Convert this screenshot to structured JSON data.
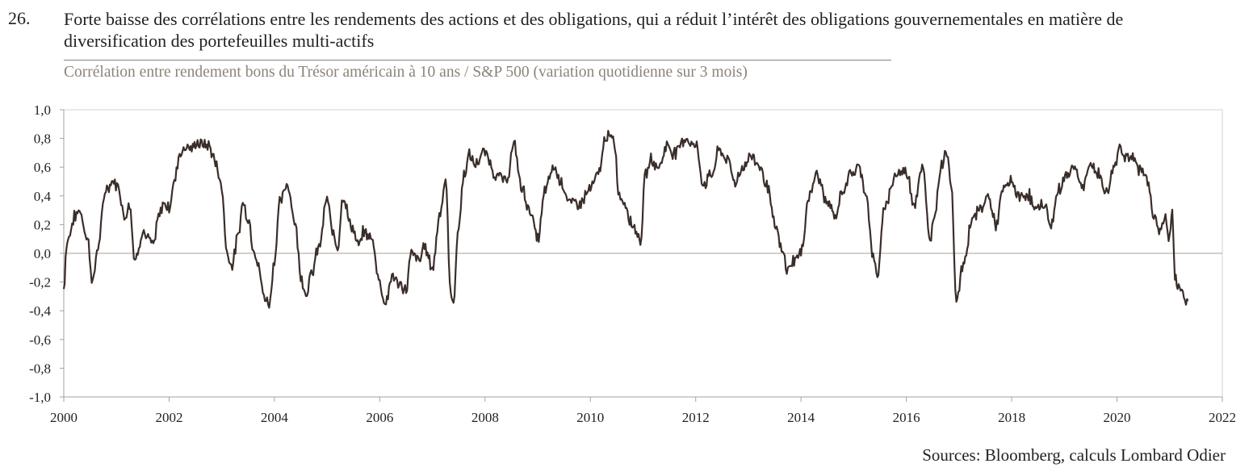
{
  "header": {
    "figure_number": "26.",
    "title": "Forte baisse des corrélations entre les rendements des actions et des obligations, qui a réduit l’intérêt des obligations gouvernementales en matière de diversification des portefeuilles multi-actifs",
    "subtitle": "Corrélation entre rendement bons du Trésor américain à 10 ans / S&P 500 (variation quotidienne sur 3 mois)"
  },
  "footer": {
    "source": "Sources: Bloomberg, calculs Lombard Odier"
  },
  "colors": {
    "line": "#3a2e2a",
    "axis": "#a8a29a",
    "grid": "#d7d3cd",
    "subtitle": "#8c8478"
  },
  "chart_data": {
    "type": "line",
    "title": "",
    "xlabel": "",
    "ylabel": "",
    "xlim": [
      2000,
      2022
    ],
    "ylim": [
      -1.0,
      1.0
    ],
    "x_ticks": [
      2000,
      2002,
      2004,
      2006,
      2008,
      2010,
      2012,
      2014,
      2016,
      2018,
      2020,
      2022
    ],
    "x_tick_labels": [
      "2000",
      "2002",
      "2004",
      "2006",
      "2008",
      "2010",
      "2012",
      "2014",
      "2016",
      "2018",
      "2020",
      "2022"
    ],
    "y_ticks": [
      1.0,
      0.8,
      0.6,
      0.4,
      0.2,
      0.0,
      -0.2,
      -0.4,
      -0.6,
      -0.8,
      -1.0
    ],
    "y_tick_labels": [
      "1,0",
      "0,8",
      "0,6",
      "0,4",
      "0,2",
      "0,0",
      "-0,2",
      "-0,4",
      "-0,6",
      "-0,8",
      "-1,0"
    ],
    "grid": false,
    "legend": "none",
    "series": [
      {
        "x": [
          2000.0,
          2000.05,
          2000.1,
          2000.2,
          2000.3,
          2000.45,
          2000.55,
          2000.65,
          2000.8,
          2000.95,
          2001.05,
          2001.15,
          2001.25,
          2001.35,
          2001.5,
          2001.6,
          2001.7,
          2001.8,
          2001.9,
          2002.0,
          2002.1,
          2002.2,
          2002.35,
          2002.45,
          2002.5,
          2002.6,
          2002.75,
          2002.9,
          2003.0,
          2003.1,
          2003.2,
          2003.3,
          2003.4,
          2003.5,
          2003.6,
          2003.7,
          2003.8,
          2003.9,
          2004.0,
          2004.1,
          2004.25,
          2004.4,
          2004.5,
          2004.6,
          2004.7,
          2004.85,
          2005.0,
          2005.1,
          2005.2,
          2005.3,
          2005.45,
          2005.6,
          2005.7,
          2005.85,
          2006.0,
          2006.1,
          2006.25,
          2006.35,
          2006.5,
          2006.6,
          2006.75,
          2006.85,
          2007.0,
          2007.15,
          2007.25,
          2007.35,
          2007.4,
          2007.5,
          2007.6,
          2007.7,
          2007.8,
          2008.0,
          2008.2,
          2008.4,
          2008.55,
          2008.7,
          2008.85,
          2009.0,
          2009.15,
          2009.3,
          2009.45,
          2009.6,
          2009.8,
          2010.0,
          2010.15,
          2010.3,
          2010.45,
          2010.55,
          2010.65,
          2010.8,
          2010.95,
          2011.05,
          2011.15,
          2011.3,
          2011.45,
          2011.6,
          2011.8,
          2012.0,
          2012.15,
          2012.3,
          2012.45,
          2012.6,
          2012.75,
          2012.9,
          2013.05,
          2013.2,
          2013.35,
          2013.5,
          2013.65,
          2013.75,
          2013.85,
          2014.0,
          2014.15,
          2014.3,
          2014.5,
          2014.65,
          2014.8,
          2014.95,
          2015.1,
          2015.25,
          2015.35,
          2015.45,
          2015.6,
          2015.8,
          2016.0,
          2016.15,
          2016.3,
          2016.45,
          2016.55,
          2016.65,
          2016.75,
          2016.85,
          2016.95,
          2017.1,
          2017.25,
          2017.4,
          2017.55,
          2017.7,
          2017.85,
          2018.0,
          2018.15,
          2018.3,
          2018.45,
          2018.6,
          2018.75,
          2018.9,
          2019.05,
          2019.2,
          2019.35,
          2019.5,
          2019.65,
          2019.8,
          2019.95,
          2020.05,
          2020.15,
          2020.3,
          2020.45,
          2020.6,
          2020.7,
          2020.8,
          2020.9,
          2021.0,
          2021.05,
          2021.1,
          2021.15,
          2021.25,
          2021.35
        ],
        "y": [
          -0.25,
          0.05,
          0.12,
          0.25,
          0.3,
          0.1,
          -0.2,
          0.05,
          0.45,
          0.5,
          0.45,
          0.25,
          0.35,
          -0.05,
          0.15,
          0.1,
          0.05,
          0.25,
          0.35,
          0.32,
          0.5,
          0.7,
          0.75,
          0.72,
          0.77,
          0.76,
          0.75,
          0.62,
          0.45,
          0.0,
          -0.08,
          0.1,
          0.35,
          0.25,
          0.05,
          -0.1,
          -0.3,
          -0.35,
          -0.05,
          0.35,
          0.48,
          0.2,
          -0.15,
          -0.28,
          -0.15,
          0.05,
          0.38,
          0.15,
          0.05,
          0.4,
          0.2,
          0.05,
          0.15,
          0.1,
          -0.2,
          -0.35,
          -0.15,
          -0.22,
          -0.25,
          0.0,
          -0.05,
          0.05,
          -0.1,
          0.3,
          0.5,
          -0.3,
          -0.32,
          0.2,
          0.55,
          0.68,
          0.62,
          0.7,
          0.55,
          0.5,
          0.75,
          0.45,
          0.3,
          0.1,
          0.45,
          0.6,
          0.5,
          0.35,
          0.35,
          0.45,
          0.55,
          0.82,
          0.78,
          0.4,
          0.35,
          0.2,
          0.1,
          0.55,
          0.65,
          0.6,
          0.75,
          0.7,
          0.8,
          0.75,
          0.48,
          0.55,
          0.72,
          0.65,
          0.5,
          0.6,
          0.68,
          0.62,
          0.48,
          0.2,
          0.0,
          -0.12,
          -0.05,
          0.0,
          0.4,
          0.55,
          0.35,
          0.25,
          0.45,
          0.55,
          0.6,
          0.4,
          0.0,
          -0.15,
          0.35,
          0.55,
          0.57,
          0.35,
          0.6,
          0.1,
          0.3,
          0.6,
          0.72,
          0.5,
          -0.32,
          -0.05,
          0.25,
          0.3,
          0.4,
          0.2,
          0.45,
          0.5,
          0.38,
          0.42,
          0.3,
          0.35,
          0.2,
          0.45,
          0.55,
          0.6,
          0.45,
          0.62,
          0.55,
          0.42,
          0.6,
          0.75,
          0.68,
          0.65,
          0.58,
          0.5,
          0.25,
          0.15,
          0.25,
          0.1,
          0.3,
          -0.18,
          -0.22,
          -0.28,
          -0.33
        ]
      }
    ]
  }
}
